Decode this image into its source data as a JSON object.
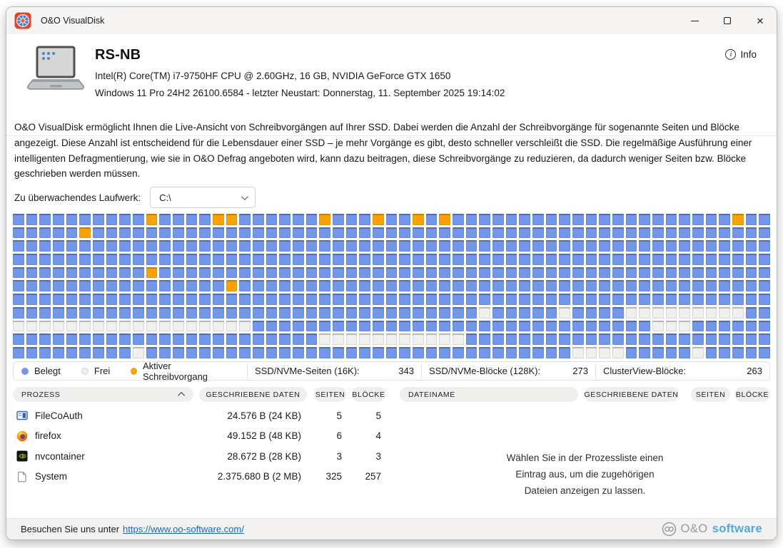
{
  "window": {
    "title": "O&O VisualDisk",
    "controls": {
      "minimize": "minimize",
      "maximize": "maximize",
      "close": "close"
    }
  },
  "header": {
    "computer_name": "RS-NB",
    "hardware": "Intel(R) Core(TM) i7-9750HF CPU @ 2.60GHz, 16 GB, NVIDIA GeForce GTX 1650",
    "os": "Windows 11 Pro 24H2 26100.6584 - letzter Neustart: Donnerstag, 11. September 2025 19:14:02",
    "info_label": "Info"
  },
  "description": "O&O VisualDisk ermöglicht Ihnen die Live-Ansicht von Schreibvorgängen auf Ihrer SSD. Dabei werden die Anzahl der Schreibvorgänge für sogenannte Seiten und Blöcke angezeigt. Diese Anzahl ist entscheidend für die Lebensdauer einer SSD – je mehr Vorgänge es gibt, desto schneller verschleißt die SSD. Die regelmäßige Ausführung einer intelligenten Defragmentierung, wie sie in O&O Defrag angeboten wird, kann dazu beitragen, diese Schreibvorgänge zu reduzieren, da dadurch weniger Seiten bzw. Blöcke geschrieben werden müssen.",
  "drive_selector": {
    "label": "Zu überwachendes Laufwerk:",
    "value": "C:\\"
  },
  "colors": {
    "belegt": "#7296EB",
    "frei": "#EFEFED",
    "aktiver_schreibvorgang": "#F8A303",
    "link": "#1A67B8",
    "brand_blue": "#55A8D8"
  },
  "disk_map": {
    "columns": 57,
    "legend": [
      {
        "label": "Belegt",
        "color": "#7296EB"
      },
      {
        "label": "Frei",
        "color": "#EFEFED"
      },
      {
        "label": "Aktiver Schreibvorgang",
        "color": "#F8A303"
      }
    ],
    "stats": [
      {
        "label": "SSD/NVMe-Seiten (16K):",
        "value": "343"
      },
      {
        "label": "SSD/NVMe-Blöcke (128K):",
        "value": "273"
      },
      {
        "label": "ClusterView-Blöcke:",
        "value": "263"
      }
    ],
    "rows": [
      "BBBBBBBBBBABBBBAABBBBBBABBBABBABABBBBBBBBBBBBBBBBBBBBBAB",
      "BBBBBABBBBBBBBBBBBBBBBBBBBBBBBBBBBBBBBBBBBBBBBBBBBBBBBB",
      "BBBBBBBBBBBBBBBBBBBBBBBBBBBBBBBBBBBBBBBBBBBBBBBBBBBBBBB",
      "BBBBBBBBBBBBBBBBBBBBBBBBBBBBBBBBBBBBBBBBBBBBBBBBBBBBBBB",
      "BBBBBBBBBBABBBBBBBBBBBBBBBBBBBBBBBBBBBBBBBBBBBBBBBBBBBB",
      "BBBBBBBBBBBBBBBBABBBBBBBBBBBBBBBBBBBBBBBBBBBBBBBBBBBBBB",
      "BBBBBBBBBBBBBBBBBBBBBBBBBBBBBBBBBBBBBBBBBBBBBBBBBBBBBBB",
      "BBBBBBBBBBBBBBBBBBBBBBBBBBBBBBBBBBBFBBBBBFBBBBFFFFFFFFF",
      "FFFFFFFFFFFFFFFFFFBBBBBBBBBBBBBBBBBBBBBBBBBBBBBBFFFBBBB",
      "BBBBBBBBBBBBBBBBBBBBBBBFFFFFFFFFFFBBBBBBBBBBBBBBBBBBBBB",
      "BBBBBBBBBFBBBBBBBBBBBBBBBBBBBBBBBBBBBBBBBBFFFFBBBBBFBBB"
    ]
  },
  "process_table": {
    "headers": {
      "process": "PROZESS",
      "written": "GESCHRIEBENE DATEN",
      "pages": "SEITEN",
      "blocks": "BLÖCKE"
    },
    "rows": [
      {
        "icon": "filecoauth-icon",
        "name": "FileCoAuth",
        "written": "24.576 B (24 KB)",
        "pages": "5",
        "blocks": "5"
      },
      {
        "icon": "firefox-icon",
        "name": "firefox",
        "written": "49.152 B (48 KB)",
        "pages": "6",
        "blocks": "4"
      },
      {
        "icon": "nvidia-icon",
        "name": "nvcontainer",
        "written": "28.672 B (28 KB)",
        "pages": "3",
        "blocks": "3"
      },
      {
        "icon": "document-icon",
        "name": "System",
        "written": "2.375.680 B (2 MB)",
        "pages": "325",
        "blocks": "257"
      }
    ]
  },
  "file_table": {
    "headers": {
      "filename": "DATEINAME",
      "written": "GESCHRIEBENE DATEN",
      "pages": "SEITEN",
      "blocks": "BLÖCKE"
    },
    "placeholder_lines": [
      "Wählen Sie in der Prozessliste einen",
      "Eintrag aus, um die zugehörigen",
      "Dateien anzeigen zu lassen."
    ]
  },
  "footer": {
    "text": "Besuchen Sie uns unter",
    "link": "https://www.oo-software.com/",
    "brand_oo": "O&O",
    "brand_software": "software"
  }
}
